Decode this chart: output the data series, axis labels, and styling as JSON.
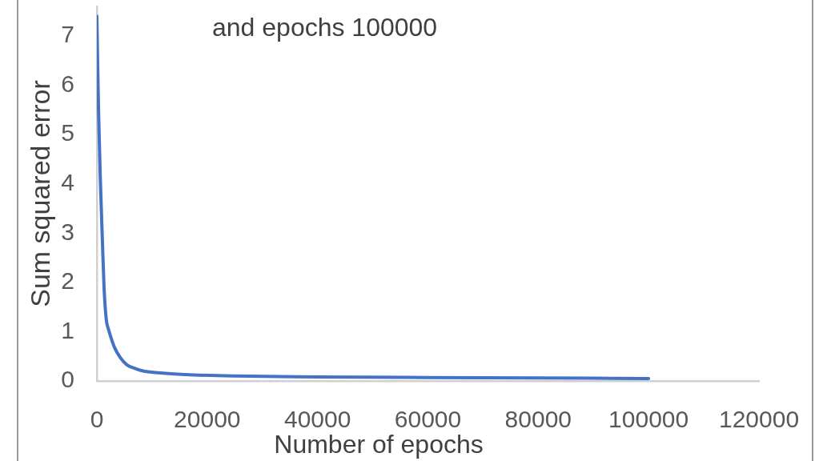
{
  "chart_data": {
    "type": "line",
    "title": "and epochs 100000",
    "xlabel": "Number of epochs",
    "ylabel": "Sum squared error",
    "x": [
      0,
      150,
      300,
      600,
      1000,
      1300,
      1700,
      2100,
      2500,
      3200,
      4200,
      5400,
      7000,
      8500,
      12000,
      16000,
      25000,
      40000,
      60000,
      80000,
      100000
    ],
    "values": [
      7.4,
      6.4,
      5.5,
      4.2,
      2.85,
      1.9,
      1.25,
      1.05,
      0.9,
      0.68,
      0.48,
      0.33,
      0.25,
      0.2,
      0.16,
      0.13,
      0.1,
      0.08,
      0.07,
      0.06,
      0.05
    ],
    "color": "#4472c4",
    "marker": "none",
    "line_style": "solid",
    "xlim": [
      0,
      120000
    ],
    "xticks": [
      0,
      20000,
      40000,
      60000,
      80000,
      100000,
      120000
    ],
    "ylim": [
      0,
      7.6
    ],
    "yticks": [
      0,
      1,
      2,
      3,
      4,
      5,
      6,
      7
    ],
    "grid": false,
    "legend": false
  }
}
